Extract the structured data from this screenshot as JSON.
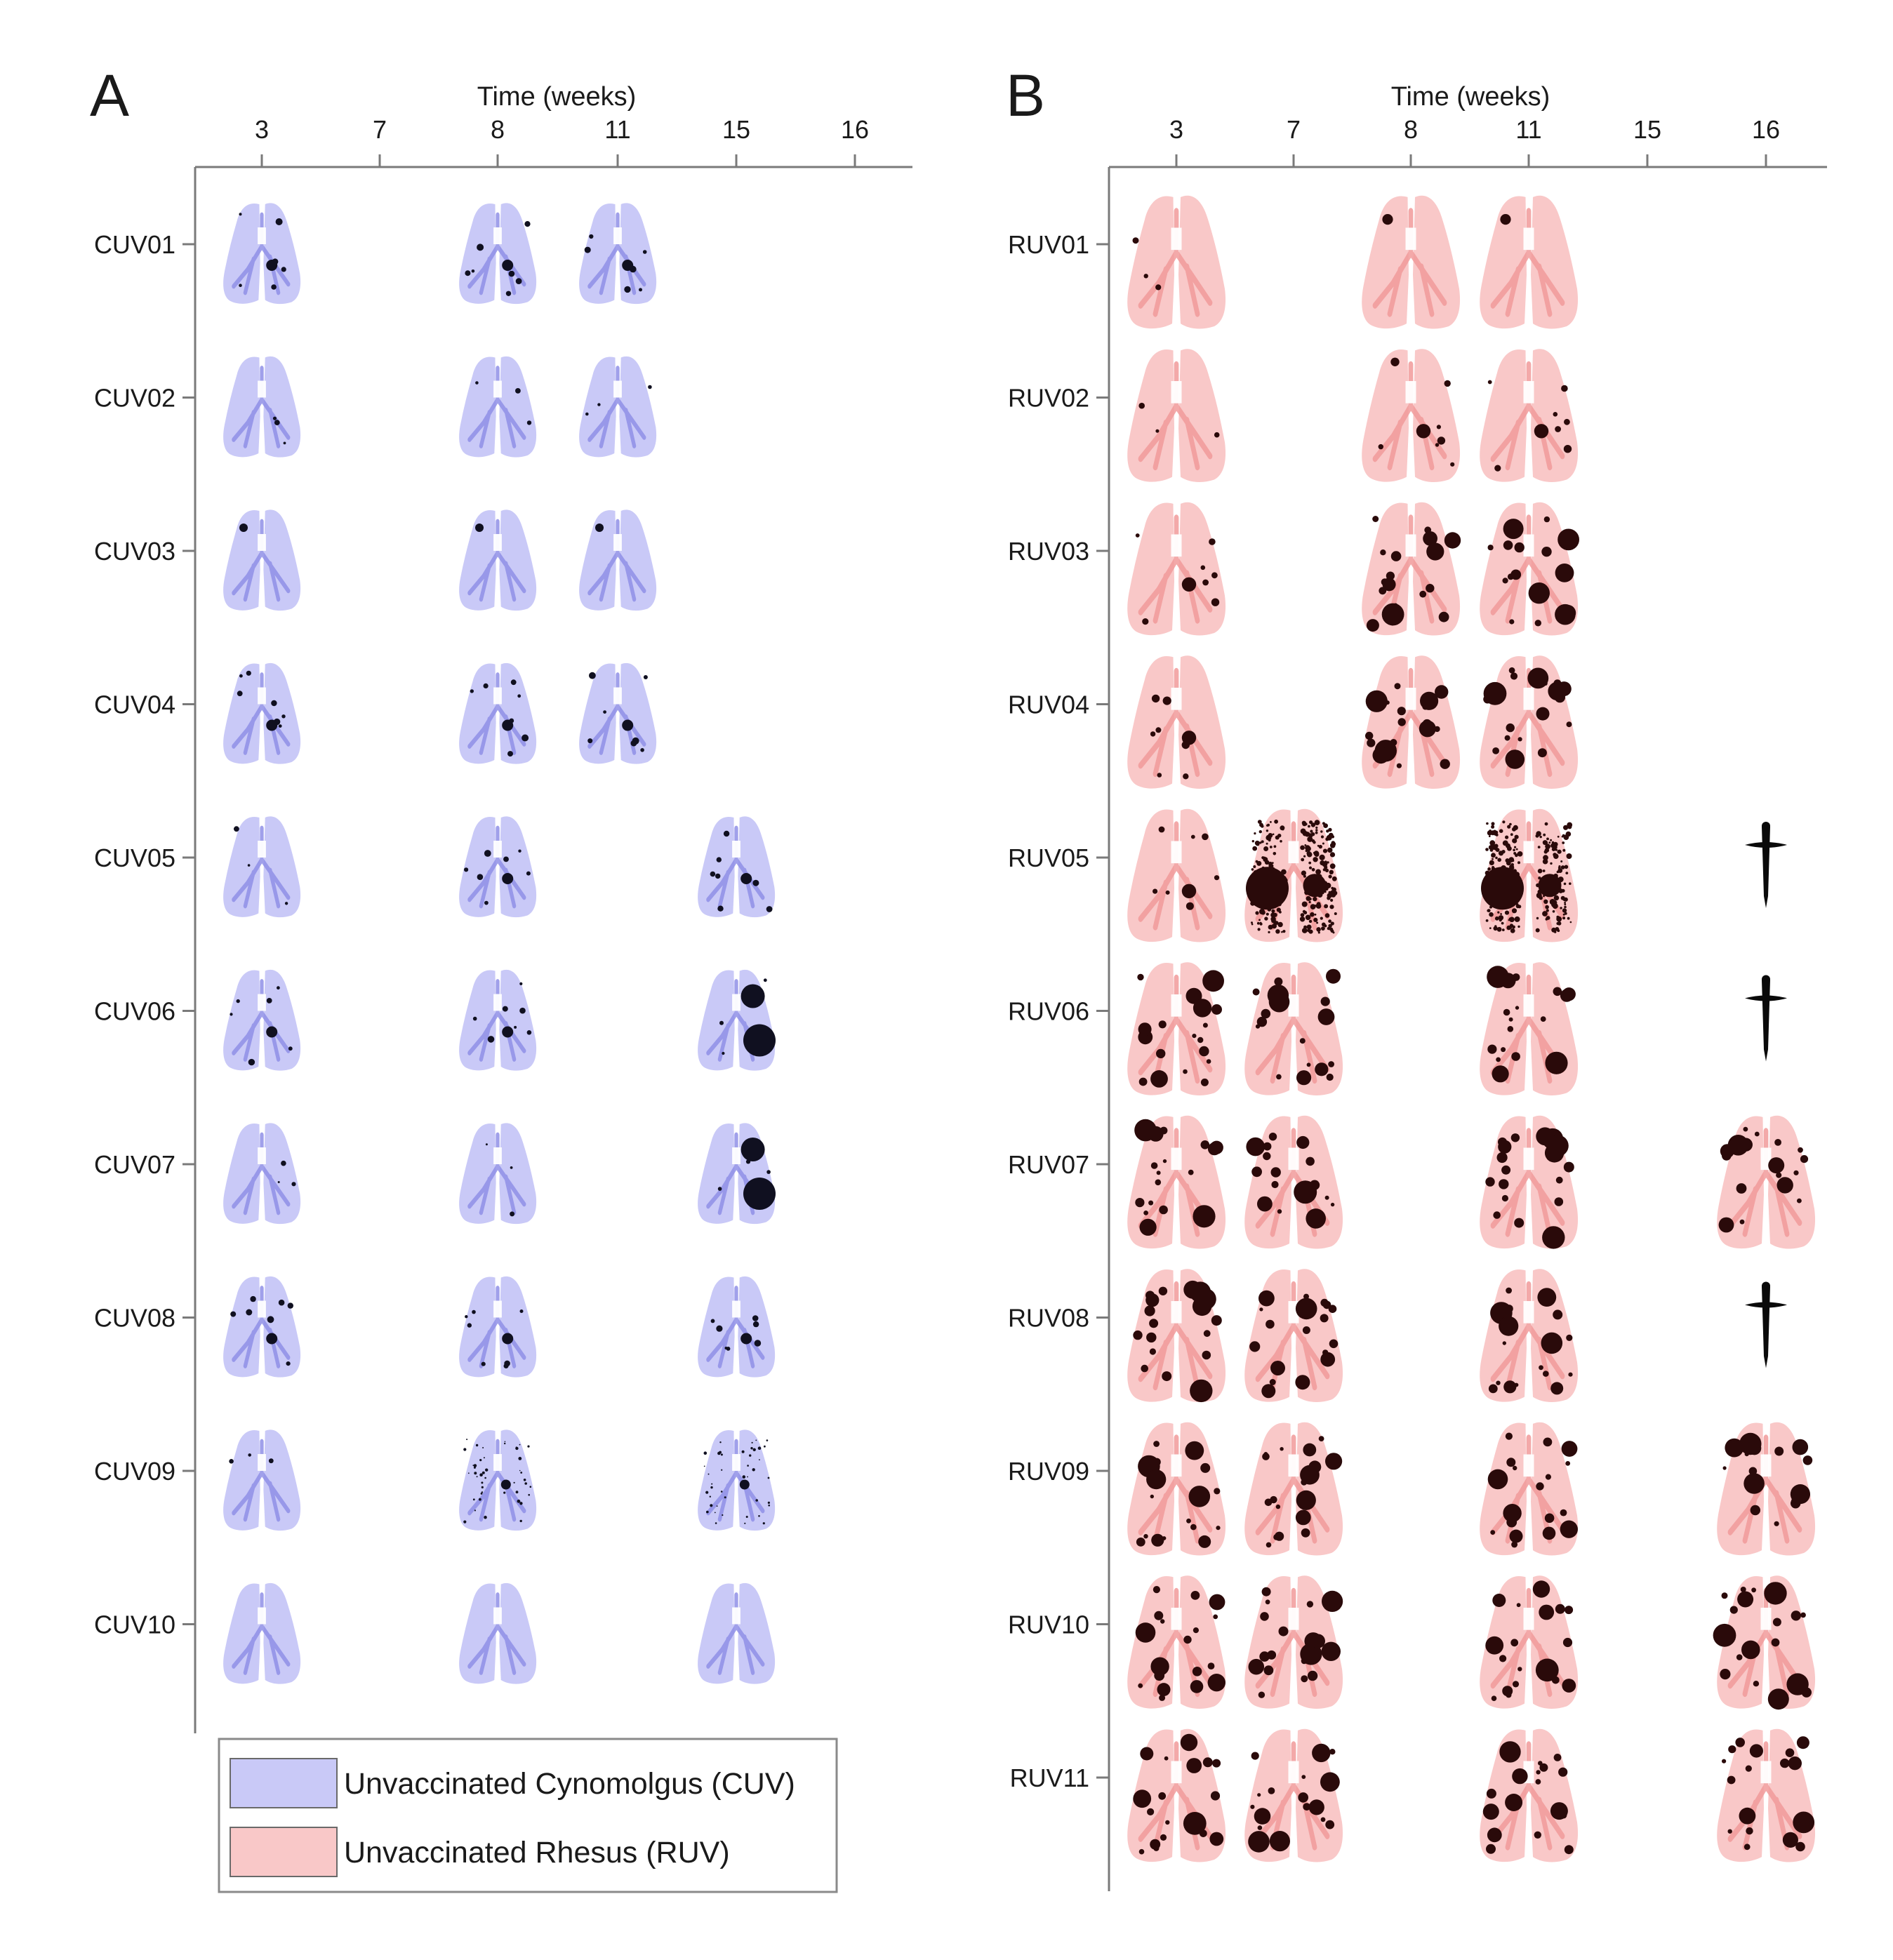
{
  "panels": [
    {
      "letter": "A",
      "axis_title": "Time (weeks)",
      "columns": [
        "3",
        "7",
        "8",
        "11",
        "15",
        "16"
      ],
      "species": "cuv",
      "rows": [
        {
          "label": "CUV01",
          "cells": [
            [
              0,
              "few"
            ],
            [
              2,
              "few"
            ],
            [
              3,
              "few"
            ]
          ]
        },
        {
          "label": "CUV02",
          "cells": [
            [
              0,
              "sparse"
            ],
            [
              2,
              "sparse"
            ],
            [
              3,
              "sparse"
            ]
          ]
        },
        {
          "label": "CUV03",
          "cells": [
            [
              0,
              "one"
            ],
            [
              2,
              "one"
            ],
            [
              3,
              "one"
            ]
          ]
        },
        {
          "label": "CUV04",
          "cells": [
            [
              0,
              "few"
            ],
            [
              2,
              "few"
            ],
            [
              3,
              "few"
            ]
          ]
        },
        {
          "label": "CUV05",
          "cells": [
            [
              0,
              "sparse"
            ],
            [
              2,
              "few"
            ],
            [
              4,
              "few"
            ]
          ]
        },
        {
          "label": "CUV06",
          "cells": [
            [
              0,
              "few"
            ],
            [
              2,
              "few"
            ],
            [
              4,
              "two-large"
            ]
          ]
        },
        {
          "label": "CUV07",
          "cells": [
            [
              0,
              "sparse"
            ],
            [
              2,
              "sparse"
            ],
            [
              4,
              "two-large"
            ]
          ]
        },
        {
          "label": "CUV08",
          "cells": [
            [
              0,
              "few"
            ],
            [
              2,
              "few"
            ],
            [
              4,
              "few"
            ]
          ]
        },
        {
          "label": "CUV09",
          "cells": [
            [
              0,
              "sparse"
            ],
            [
              2,
              "speckled"
            ],
            [
              4,
              "speckled"
            ]
          ]
        },
        {
          "label": "CUV10",
          "cells": [
            [
              0,
              "none"
            ],
            [
              2,
              "none"
            ],
            [
              4,
              "none"
            ]
          ]
        }
      ]
    },
    {
      "letter": "B",
      "axis_title": "Time (weeks)",
      "columns": [
        "3",
        "7",
        "8",
        "11",
        "15",
        "16"
      ],
      "species": "ruv",
      "rows": [
        {
          "label": "RUV01",
          "cells": [
            [
              0,
              "sparse"
            ],
            [
              2,
              "one"
            ],
            [
              3,
              "one"
            ]
          ]
        },
        {
          "label": "RUV02",
          "cells": [
            [
              0,
              "sparse"
            ],
            [
              2,
              "few"
            ],
            [
              3,
              "few"
            ]
          ]
        },
        {
          "label": "RUV03",
          "cells": [
            [
              0,
              "few"
            ],
            [
              2,
              "many"
            ],
            [
              3,
              "many"
            ]
          ]
        },
        {
          "label": "RUV04",
          "cells": [
            [
              0,
              "few"
            ],
            [
              2,
              "many"
            ],
            [
              3,
              "many"
            ]
          ]
        },
        {
          "label": "RUV05",
          "cells": [
            [
              0,
              "few"
            ],
            [
              1,
              "dense"
            ],
            [
              3,
              "dense"
            ],
            [
              5,
              "dagger"
            ]
          ]
        },
        {
          "label": "RUV06",
          "cells": [
            [
              0,
              "many"
            ],
            [
              1,
              "many"
            ],
            [
              3,
              "many"
            ],
            [
              5,
              "dagger"
            ]
          ]
        },
        {
          "label": "RUV07",
          "cells": [
            [
              0,
              "many"
            ],
            [
              1,
              "many"
            ],
            [
              3,
              "many"
            ],
            [
              5,
              "many"
            ]
          ]
        },
        {
          "label": "RUV08",
          "cells": [
            [
              0,
              "many"
            ],
            [
              1,
              "many"
            ],
            [
              3,
              "many"
            ],
            [
              5,
              "dagger"
            ]
          ]
        },
        {
          "label": "RUV09",
          "cells": [
            [
              0,
              "many"
            ],
            [
              1,
              "many"
            ],
            [
              3,
              "many"
            ],
            [
              5,
              "many"
            ]
          ]
        },
        {
          "label": "RUV10",
          "cells": [
            [
              0,
              "many"
            ],
            [
              1,
              "many"
            ],
            [
              3,
              "many"
            ],
            [
              5,
              "many"
            ]
          ]
        },
        {
          "label": "RUV11",
          "cells": [
            [
              0,
              "many"
            ],
            [
              1,
              "many"
            ],
            [
              3,
              "many"
            ],
            [
              5,
              "many"
            ]
          ]
        }
      ]
    }
  ],
  "legend": [
    {
      "label": "Unvaccinated Cynomolgus (CUV)",
      "species": "cuv"
    },
    {
      "label": "Unvaccinated Rhesus (RUV)",
      "species": "ruv"
    }
  ],
  "colors": {
    "cuv_fill": "#c9c9f7",
    "cuv_vessel": "#8f8fe6",
    "ruv_fill": "#f9c8c8",
    "ruv_vessel": "#f19a9a",
    "cuv_lesion": "#101020",
    "ruv_lesion": "#2a0a0a",
    "axis": "#7a7a7a"
  }
}
